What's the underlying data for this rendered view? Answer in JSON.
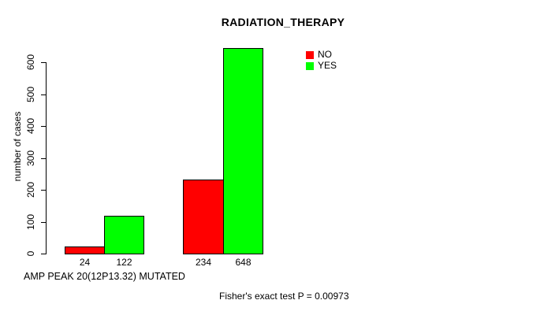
{
  "figure": {
    "title": "RADIATION_THERAPY",
    "y_axis_label": "number of cases",
    "x_axis_label": "AMP PEAK 20(12P13.32) MUTATED",
    "footnote": "Fisher's exact test P = 0.00973",
    "legend": {
      "items": [
        {
          "label": "NO",
          "color": "#ff0000"
        },
        {
          "label": "YES",
          "color": "#00ff00"
        }
      ]
    }
  },
  "chart_data": {
    "type": "bar",
    "title": "RADIATION_THERAPY",
    "xlabel": "AMP PEAK 20(12P13.32) MUTATED",
    "ylabel": "number of cases",
    "ylim": [
      0,
      650
    ],
    "yticks": [
      0,
      100,
      200,
      300,
      400,
      500,
      600
    ],
    "categories": [
      "",
      ""
    ],
    "series": [
      {
        "name": "NO",
        "color": "#ff0000",
        "values": [
          24,
          234
        ]
      },
      {
        "name": "YES",
        "color": "#00ff00",
        "values": [
          122,
          648
        ]
      }
    ],
    "bar_value_labels": [
      "24",
      "122",
      "234",
      "648"
    ],
    "legend_position": "top-right",
    "grid": false,
    "annotation": "Fisher's exact test P = 0.00973"
  }
}
